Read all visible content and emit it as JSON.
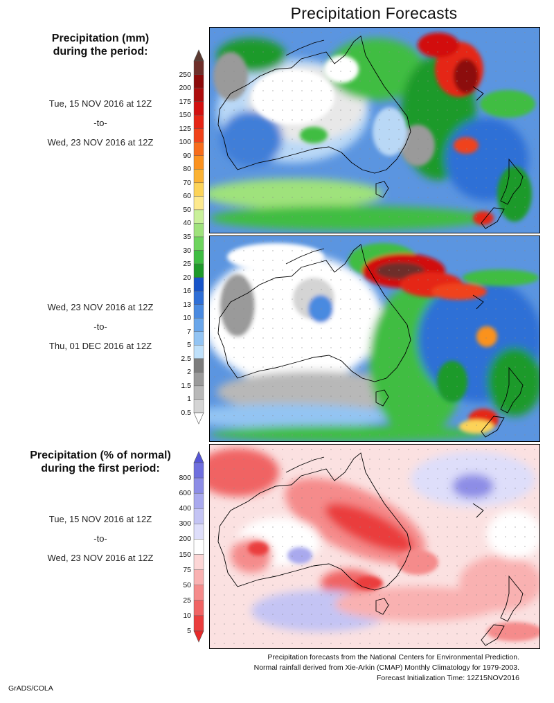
{
  "title": "Precipitation Forecasts",
  "scale_amount": {
    "heading_line1": "Precipitation (mm)",
    "heading_line2": "during the period:",
    "levels": [
      "250",
      "200",
      "175",
      "150",
      "125",
      "100",
      "90",
      "80",
      "70",
      "60",
      "50",
      "40",
      "35",
      "30",
      "25",
      "20",
      "16",
      "13",
      "10",
      "7",
      "5",
      "2.5",
      "2",
      "1.5",
      "1",
      "0.5"
    ],
    "colors": [
      "#6e2f2a",
      "#8c0a0a",
      "#ad0d0d",
      "#d21010",
      "#e52516",
      "#f0421a",
      "#f76d1c",
      "#fb921f",
      "#fbb234",
      "#fcd359",
      "#fde98e",
      "#c9f09a",
      "#9fe27c",
      "#6ed45e",
      "#3fbd43",
      "#1f9a2a",
      "#1854c8",
      "#2f6fd6",
      "#4a8ae0",
      "#6aa6ea",
      "#93c4f3",
      "#bfe0fa",
      "#7c7c7c",
      "#9a9a9a",
      "#b8b8b8",
      "#d4d4d4"
    ],
    "top_arrow_color": "#5b3a32",
    "bottom_arrow_color": "#ffffff"
  },
  "scale_percent": {
    "heading_line1": "Precipitation (% of normal)",
    "heading_line2": "during the first period:",
    "levels": [
      "800",
      "600",
      "400",
      "300",
      "200",
      "150",
      "75",
      "50",
      "25",
      "10",
      "5"
    ],
    "colors": [
      "#6f6fde",
      "#8d8de6",
      "#a9a9ee",
      "#c4c4f4",
      "#dedefa",
      "#ffffff",
      "#fcd6d6",
      "#f9b1b1",
      "#f58b8b",
      "#f06464",
      "#ea3d3d"
    ],
    "top_arrow_color": "#5555d6",
    "bottom_arrow_color": "#e82a2a"
  },
  "periods": [
    {
      "start": "Tue, 15 NOV 2016 at 12Z",
      "sep": "-to-",
      "end": "Wed, 23 NOV 2016 at 12Z"
    },
    {
      "start": "Wed, 23 NOV 2016 at 12Z",
      "sep": "-to-",
      "end": "Thu, 01 DEC 2016 at 12Z"
    },
    {
      "start": "Tue, 15 NOV 2016 at 12Z",
      "sep": "-to-",
      "end": "Wed, 23 NOV 2016 at 12Z"
    }
  ],
  "footer": {
    "line1": "Precipitation forecasts from the National Centers for Environmental Prediction.",
    "line2": "Normal rainfall derived from Xie-Arkin (CMAP) Monthly Climatology for 1979-2003.",
    "line3": "Forecast Initialization Time: 12Z15NOV2016"
  },
  "credit": "GrADS/COLA"
}
